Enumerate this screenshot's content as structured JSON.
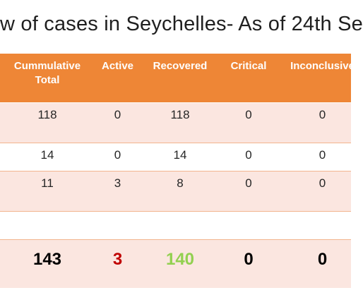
{
  "title": "w  of cases in Seychelles- As of 24th Se",
  "table": {
    "headers": [
      "Cummulative Total",
      "Active",
      "Recovered",
      "Critical",
      "Inconclusive"
    ],
    "rows": [
      [
        "118",
        "0",
        "118",
        "0",
        "0"
      ],
      [
        "14",
        "0",
        "14",
        "0",
        "0"
      ],
      [
        "11",
        "3",
        "8",
        "0",
        "0"
      ],
      [
        "",
        "",
        "",
        "",
        ""
      ]
    ],
    "total": [
      "143",
      "3",
      "140",
      "0",
      "0"
    ]
  },
  "colors": {
    "header_bg": "#ee8636",
    "row_pink": "#fbe6e0",
    "active_total": "#c00000",
    "recovered_total": "#92d050"
  }
}
